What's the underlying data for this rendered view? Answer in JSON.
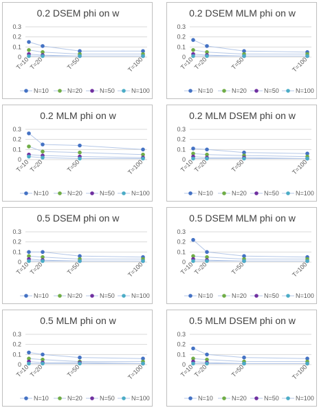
{
  "chart_data": [
    {
      "type": "line",
      "title": "0.2 DSEM phi on w",
      "categories": [
        "T=10",
        "T=20",
        "T=50",
        "T=100"
      ],
      "ylim": [
        0,
        0.3
      ],
      "yticks": [
        "0",
        "0.1",
        "0.2",
        "0.3"
      ],
      "grid": "horizontal",
      "legend_position": "bottom",
      "series": [
        {
          "name": "N=10",
          "color": "#4472c4",
          "values": [
            0.15,
            0.11,
            0.06,
            0.06
          ]
        },
        {
          "name": "N=20",
          "color": "#70ad47",
          "values": [
            0.07,
            0.05,
            0.03,
            0.03
          ]
        },
        {
          "name": "N=50",
          "color": "#7030a0",
          "values": [
            0.03,
            0.02,
            0.01,
            0.01
          ]
        },
        {
          "name": "N=100",
          "color": "#4bacc6",
          "values": [
            0.01,
            0.01,
            0.01,
            0.01
          ]
        }
      ]
    },
    {
      "type": "line",
      "title": "0.2 DSEM MLM phi on w",
      "categories": [
        "T=10",
        "T=20",
        "T=50",
        "T=100"
      ],
      "ylim": [
        0,
        0.3
      ],
      "yticks": [
        "0",
        "0.1",
        "0.2",
        "0.3"
      ],
      "grid": "horizontal",
      "legend_position": "bottom",
      "series": [
        {
          "name": "N=10",
          "color": "#4472c4",
          "values": [
            0.17,
            0.11,
            0.06,
            0.05
          ]
        },
        {
          "name": "N=20",
          "color": "#70ad47",
          "values": [
            0.07,
            0.05,
            0.03,
            0.03
          ]
        },
        {
          "name": "N=50",
          "color": "#7030a0",
          "values": [
            0.03,
            0.02,
            0.01,
            0.01
          ]
        },
        {
          "name": "N=100",
          "color": "#4bacc6",
          "values": [
            0.01,
            0.01,
            0.01,
            0.01
          ]
        }
      ]
    },
    {
      "type": "line",
      "title": "0.2 MLM phi on w",
      "categories": [
        "T=10",
        "T=20",
        "T=50",
        "T=100"
      ],
      "ylim": [
        0,
        0.3
      ],
      "yticks": [
        "0",
        "0.1",
        "0.2",
        "0.3"
      ],
      "grid": "horizontal",
      "legend_position": "bottom",
      "series": [
        {
          "name": "N=10",
          "color": "#4472c4",
          "values": [
            0.26,
            0.15,
            0.14,
            0.1
          ]
        },
        {
          "name": "N=20",
          "color": "#70ad47",
          "values": [
            0.13,
            0.08,
            0.07,
            0.05
          ]
        },
        {
          "name": "N=50",
          "color": "#7030a0",
          "values": [
            0.05,
            0.04,
            0.03,
            0.02
          ]
        },
        {
          "name": "N=100",
          "color": "#4bacc6",
          "values": [
            0.03,
            0.02,
            0.01,
            0.01
          ]
        }
      ]
    },
    {
      "type": "line",
      "title": "0.2 MLM DSEM phi on w",
      "categories": [
        "T=10",
        "T=20",
        "T=50",
        "T=100"
      ],
      "ylim": [
        0,
        0.3
      ],
      "yticks": [
        "0",
        "0.1",
        "0.2",
        "0.3"
      ],
      "grid": "horizontal",
      "legend_position": "bottom",
      "series": [
        {
          "name": "N=10",
          "color": "#4472c4",
          "values": [
            0.11,
            0.1,
            0.07,
            0.06
          ]
        },
        {
          "name": "N=20",
          "color": "#70ad47",
          "values": [
            0.06,
            0.05,
            0.04,
            0.03
          ]
        },
        {
          "name": "N=50",
          "color": "#7030a0",
          "values": [
            0.03,
            0.02,
            0.02,
            0.01
          ]
        },
        {
          "name": "N=100",
          "color": "#4bacc6",
          "values": [
            0.01,
            0.01,
            0.01,
            0.01
          ]
        }
      ]
    },
    {
      "type": "line",
      "title": "0.5 DSEM phi on w",
      "categories": [
        "T=10",
        "T=20",
        "T=50",
        "T=100"
      ],
      "ylim": [
        0,
        0.3
      ],
      "yticks": [
        "0",
        "0.1",
        "0.2",
        "0.3"
      ],
      "grid": "horizontal",
      "legend_position": "bottom",
      "series": [
        {
          "name": "N=10",
          "color": "#4472c4",
          "values": [
            0.1,
            0.1,
            0.06,
            0.05
          ]
        },
        {
          "name": "N=20",
          "color": "#70ad47",
          "values": [
            0.06,
            0.05,
            0.03,
            0.03
          ]
        },
        {
          "name": "N=50",
          "color": "#7030a0",
          "values": [
            0.03,
            0.02,
            0.01,
            0.01
          ]
        },
        {
          "name": "N=100",
          "color": "#4bacc6",
          "values": [
            0.01,
            0.01,
            0.01,
            0.01
          ]
        }
      ]
    },
    {
      "type": "line",
      "title": "0.5 DSEM MLM phi on w",
      "categories": [
        "T=10",
        "T=20",
        "T=50",
        "T=100"
      ],
      "ylim": [
        0,
        0.3
      ],
      "yticks": [
        "0",
        "0.1",
        "0.2",
        "0.3"
      ],
      "grid": "horizontal",
      "legend_position": "bottom",
      "series": [
        {
          "name": "N=10",
          "color": "#4472c4",
          "values": [
            0.22,
            0.1,
            0.06,
            0.05
          ]
        },
        {
          "name": "N=20",
          "color": "#70ad47",
          "values": [
            0.06,
            0.05,
            0.03,
            0.03
          ]
        },
        {
          "name": "N=50",
          "color": "#7030a0",
          "values": [
            0.03,
            0.02,
            0.01,
            0.01
          ]
        },
        {
          "name": "N=100",
          "color": "#4bacc6",
          "values": [
            0.01,
            0.01,
            0.01,
            0.01
          ]
        }
      ]
    },
    {
      "type": "line",
      "title": "0.5 MLM phi on w",
      "categories": [
        "T=10",
        "T=20",
        "T=50",
        "T=100"
      ],
      "ylim": [
        0,
        0.3
      ],
      "yticks": [
        "0",
        "0.1",
        "0.2",
        "0.3"
      ],
      "grid": "horizontal",
      "legend_position": "bottom",
      "series": [
        {
          "name": "N=10",
          "color": "#4472c4",
          "values": [
            0.12,
            0.1,
            0.07,
            0.06
          ]
        },
        {
          "name": "N=20",
          "color": "#70ad47",
          "values": [
            0.06,
            0.05,
            0.03,
            0.03
          ]
        },
        {
          "name": "N=50",
          "color": "#7030a0",
          "values": [
            0.03,
            0.02,
            0.02,
            0.01
          ]
        },
        {
          "name": "N=100",
          "color": "#4bacc6",
          "values": [
            0.01,
            0.01,
            0.01,
            0.01
          ]
        }
      ]
    },
    {
      "type": "line",
      "title": "0.5 MLM DSEM phi on w",
      "categories": [
        "T=10",
        "T=20",
        "T=50",
        "T=100"
      ],
      "ylim": [
        0,
        0.3
      ],
      "yticks": [
        "0",
        "0.1",
        "0.2",
        "0.3"
      ],
      "grid": "horizontal",
      "legend_position": "bottom",
      "series": [
        {
          "name": "N=10",
          "color": "#4472c4",
          "values": [
            0.16,
            0.1,
            0.07,
            0.06
          ]
        },
        {
          "name": "N=20",
          "color": "#70ad47",
          "values": [
            0.06,
            0.05,
            0.03,
            0.03
          ]
        },
        {
          "name": "N=50",
          "color": "#7030a0",
          "values": [
            0.03,
            0.02,
            0.01,
            0.01
          ]
        },
        {
          "name": "N=100",
          "color": "#4bacc6",
          "values": [
            0.01,
            0.01,
            0.01,
            0.01
          ]
        }
      ]
    }
  ]
}
